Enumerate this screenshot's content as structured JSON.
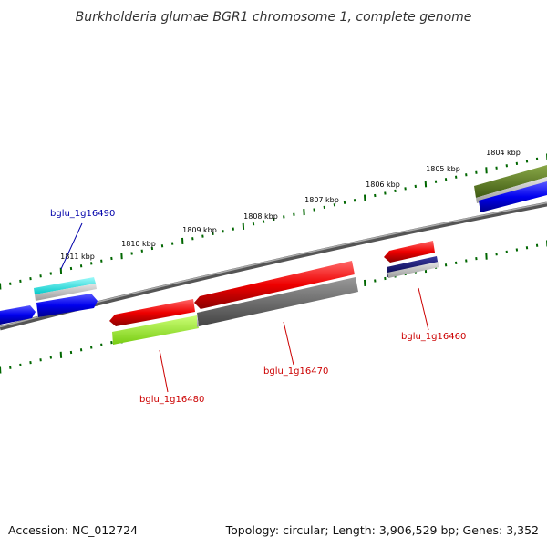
{
  "title": "Burkholderia glumae BGR1 chromosome 1, complete genome",
  "footer": {
    "accession": "Accession: NC_012724",
    "summary": "Topology: circular; Length: 3,906,529 bp; Genes: 3,352"
  },
  "scale_labels": [
    "1804 kbp",
    "1805 kbp",
    "1806 kbp",
    "1807 kbp",
    "1808 kbp",
    "1809 kbp",
    "1810 kbp",
    "1811 kbp"
  ],
  "genes": [
    {
      "id": "bglu_1g16490",
      "color": "#0000aa"
    },
    {
      "id": "bglu_1g16480",
      "color": "#cc0000"
    },
    {
      "id": "bglu_1g16470",
      "color": "#cc0000"
    },
    {
      "id": "bglu_1g16460",
      "color": "#cc0000"
    }
  ],
  "colors": {
    "cds_forward": "#0000ee",
    "cds_reverse": "#ee0000",
    "highlight_cyan": "#00e0e0",
    "olive_feature": "#5a7a20",
    "lime_feature": "#99ee33",
    "dark_gray_feature": "#666666",
    "navy_feature": "#000066",
    "backbone": "#777777",
    "tick_green": "#006600"
  }
}
